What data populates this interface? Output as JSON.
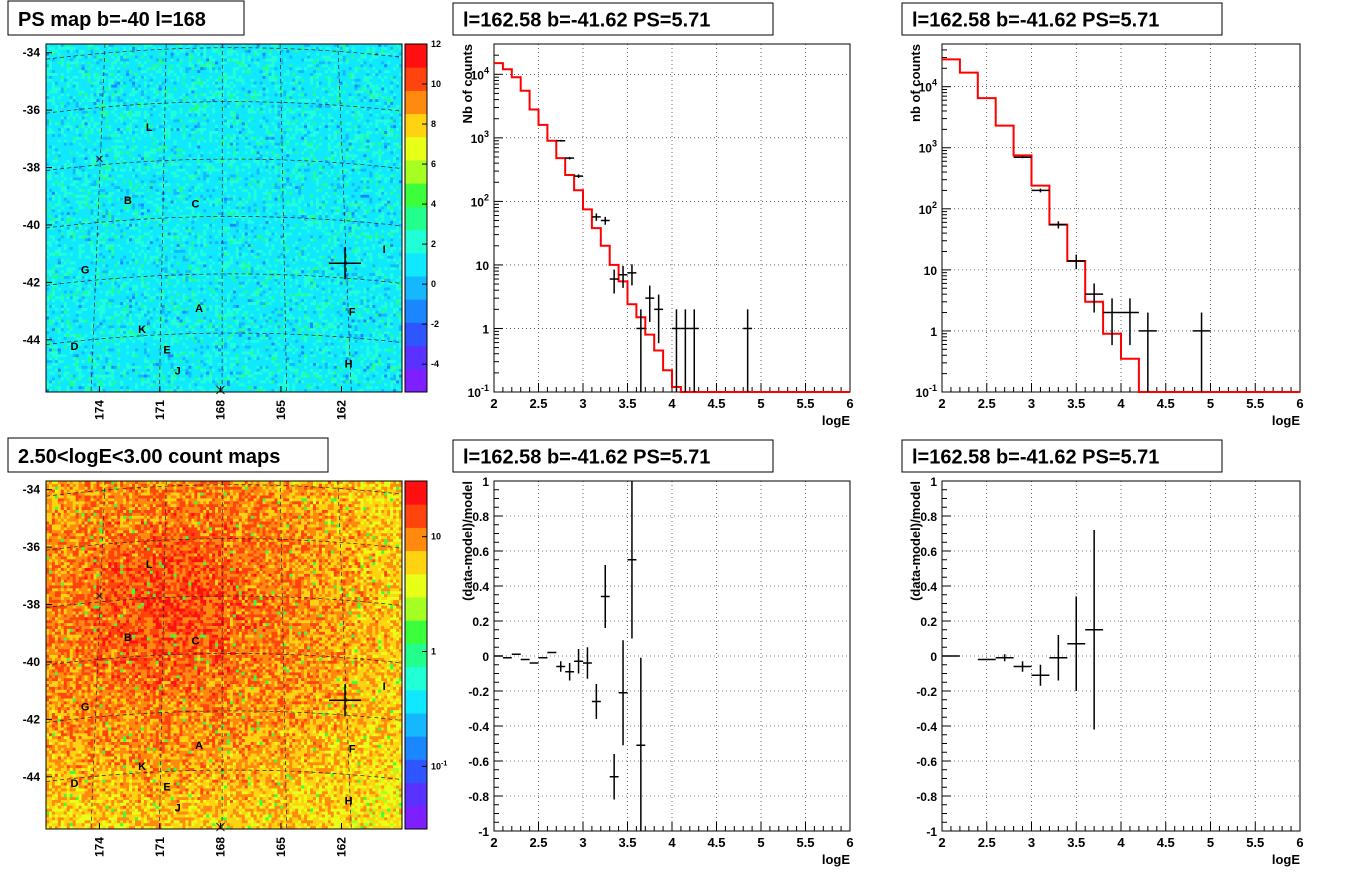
{
  "colors": {
    "frame": "#000000",
    "model": "#ff0000",
    "grid": "#000000"
  },
  "chart_data": [
    {
      "type": "heatmap",
      "title": "PS map b=-40 l=168",
      "ytick_labels": [
        "-34",
        "-36",
        "-38",
        "-40",
        "-42",
        "-44"
      ],
      "xtick_labels": [
        "174",
        "171",
        "168",
        "165",
        "162"
      ],
      "zaxis": {
        "scale": "linear",
        "ticks": [
          "12",
          "10",
          "8",
          "6",
          "4",
          "2",
          "0",
          "-2",
          "-4"
        ]
      },
      "source_labels": [
        "L",
        "B",
        "C",
        "G",
        "A",
        "F",
        "K",
        "D",
        "E",
        "J",
        "H",
        "I"
      ]
    },
    {
      "type": "line",
      "title": "l=162.58 b=-41.62 PS=5.71",
      "xlabel": "logE",
      "ylabel": "Nb of counts",
      "xlim": [
        2,
        6
      ],
      "ylim": [
        0.1,
        30000
      ],
      "yscale": "log",
      "xtick_labels": [
        "2",
        "2.5",
        "3",
        "3.5",
        "4",
        "4.5",
        "5",
        "5.5",
        "6"
      ],
      "ytick_labels": [
        "10^4",
        "10^3",
        "10^2",
        "10",
        "1",
        "10^-1"
      ],
      "series": [
        {
          "style": "histogram",
          "x": [
            2.05,
            2.15,
            2.25,
            2.35,
            2.45,
            2.55,
            2.65,
            2.75,
            2.85,
            2.95,
            3.05,
            3.15,
            3.25,
            3.35,
            3.45,
            3.55,
            3.65,
            3.75,
            3.85,
            3.95,
            4.05,
            4.15,
            4.25,
            4.35,
            4.45,
            4.55,
            4.65,
            4.75,
            4.85,
            4.95,
            5.5
          ],
          "y": [
            15000,
            12000,
            9000,
            5500,
            2800,
            1600,
            900,
            480,
            260,
            150,
            75,
            38,
            20,
            10,
            5.5,
            2.4,
            1.5,
            0.8,
            0.45,
            0.22,
            0.12,
            0.1,
            0.1,
            0.1,
            0.1,
            0.1,
            0.1,
            0.1,
            0.1,
            0.1,
            0.1
          ]
        },
        {
          "style": "errorbar",
          "x": [
            2.75,
            2.85,
            2.95,
            3.15,
            3.25,
            3.35,
            3.45,
            3.55,
            3.65,
            3.75,
            3.85,
            4.05,
            4.15,
            4.25,
            4.85
          ],
          "y": [
            900,
            480,
            250,
            57,
            50,
            6,
            7,
            7.5,
            1,
            3,
            2,
            1,
            1,
            1,
            1
          ]
        }
      ]
    },
    {
      "type": "line",
      "title": "l=162.58 b=-41.62 PS=5.71",
      "xlabel": "logE",
      "ylabel": "nb of counts",
      "xlim": [
        2,
        6
      ],
      "ylim": [
        0.1,
        50000
      ],
      "yscale": "log",
      "xtick_labels": [
        "2",
        "2.5",
        "3",
        "3.5",
        "4",
        "4.5",
        "5",
        "5.5",
        "6"
      ],
      "ytick_labels": [
        "10^4",
        "10^3",
        "10^2",
        "10",
        "1",
        "10^-1"
      ],
      "series": [
        {
          "style": "histogram",
          "x": [
            2.1,
            2.3,
            2.5,
            2.7,
            2.9,
            3.1,
            3.3,
            3.5,
            3.7,
            3.9,
            4.1,
            4.3,
            4.5,
            4.7,
            4.9,
            5.5
          ],
          "y": [
            28000,
            17000,
            6500,
            2300,
            750,
            240,
            55,
            14,
            3,
            0.9,
            0.35,
            0.1,
            0.1,
            0.1,
            0.1,
            0.1
          ]
        },
        {
          "style": "errorbar",
          "x": [
            2.9,
            3.1,
            3.3,
            3.5,
            3.7,
            3.9,
            4.1,
            4.3,
            4.9
          ],
          "y": [
            700,
            200,
            55,
            14,
            4,
            2,
            2,
            1,
            1
          ]
        }
      ]
    },
    {
      "type": "scatter",
      "title": "l=162.58 b=-41.62 PS=5.71",
      "xlabel": "logE",
      "ylabel": "(data-model)/model",
      "xlim": [
        2,
        6
      ],
      "ylim": [
        -1,
        1
      ],
      "xtick_labels": [
        "2",
        "2.5",
        "3",
        "3.5",
        "4",
        "4.5",
        "5",
        "5.5",
        "6"
      ],
      "ytick_labels": [
        "1",
        "0.8",
        "0.6",
        "0.4",
        "0.2",
        "0",
        "-0.2",
        "-0.4",
        "-0.6",
        "-0.8",
        "-1"
      ],
      "points": [
        {
          "x": 2.05,
          "y": 0,
          "err": 0
        },
        {
          "x": 2.15,
          "y": -0.01,
          "err": 0
        },
        {
          "x": 2.25,
          "y": 0.01,
          "err": 0
        },
        {
          "x": 2.35,
          "y": -0.02,
          "err": 0
        },
        {
          "x": 2.45,
          "y": -0.04,
          "err": 0
        },
        {
          "x": 2.55,
          "y": -0.01,
          "err": 0
        },
        {
          "x": 2.65,
          "y": 0.02,
          "err": 0
        },
        {
          "x": 2.75,
          "y": -0.06,
          "err": 0.03
        },
        {
          "x": 2.85,
          "y": -0.09,
          "err": 0.05
        },
        {
          "x": 2.95,
          "y": -0.03,
          "err": 0.07
        },
        {
          "x": 3.05,
          "y": -0.04,
          "err": 0.09
        },
        {
          "x": 3.15,
          "y": -0.26,
          "err": 0.1
        },
        {
          "x": 3.25,
          "y": 0.34,
          "err": 0.18
        },
        {
          "x": 3.35,
          "y": -0.69,
          "err": 0.13
        },
        {
          "x": 3.45,
          "y": -0.21,
          "err": 0.3
        },
        {
          "x": 3.55,
          "y": 0.55,
          "err": 0.45
        },
        {
          "x": 3.65,
          "y": -0.51,
          "err": 0.5
        }
      ]
    },
    {
      "type": "scatter",
      "title": "l=162.58 b=-41.62 PS=5.71",
      "xlabel": "logE",
      "ylabel": "(data-model)/model",
      "xlim": [
        2,
        6
      ],
      "ylim": [
        -1,
        1
      ],
      "xtick_labels": [
        "2",
        "2.5",
        "3",
        "3.5",
        "4",
        "4.5",
        "5",
        "5.5",
        "6"
      ],
      "ytick_labels": [
        "1",
        "0.8",
        "0.6",
        "0.4",
        "0.2",
        "0",
        "-0.2",
        "-0.4",
        "-0.6",
        "-0.8",
        "-1"
      ],
      "points": [
        {
          "x": 2.1,
          "y": 0,
          "err": 0
        },
        {
          "x": 2.5,
          "y": -0.02,
          "err": 0
        },
        {
          "x": 2.7,
          "y": -0.01,
          "err": 0.02
        },
        {
          "x": 2.9,
          "y": -0.06,
          "err": 0.03
        },
        {
          "x": 3.1,
          "y": -0.11,
          "err": 0.06
        },
        {
          "x": 3.3,
          "y": -0.01,
          "err": 0.13
        },
        {
          "x": 3.5,
          "y": 0.07,
          "err": 0.27
        },
        {
          "x": 3.7,
          "y": 0.15,
          "err": 0.57
        }
      ]
    },
    {
      "type": "heatmap",
      "title": "2.50<logE<3.00 count maps",
      "ytick_labels": [
        "-34",
        "-36",
        "-38",
        "-40",
        "-42",
        "-44"
      ],
      "xtick_labels": [
        "174",
        "171",
        "168",
        "165",
        "162"
      ],
      "zaxis": {
        "scale": "log",
        "ticks": [
          "10",
          "1",
          "10^-1"
        ]
      },
      "source_labels": [
        "L",
        "B",
        "C",
        "G",
        "A",
        "F",
        "K",
        "D",
        "E",
        "J",
        "H",
        "I"
      ]
    }
  ]
}
